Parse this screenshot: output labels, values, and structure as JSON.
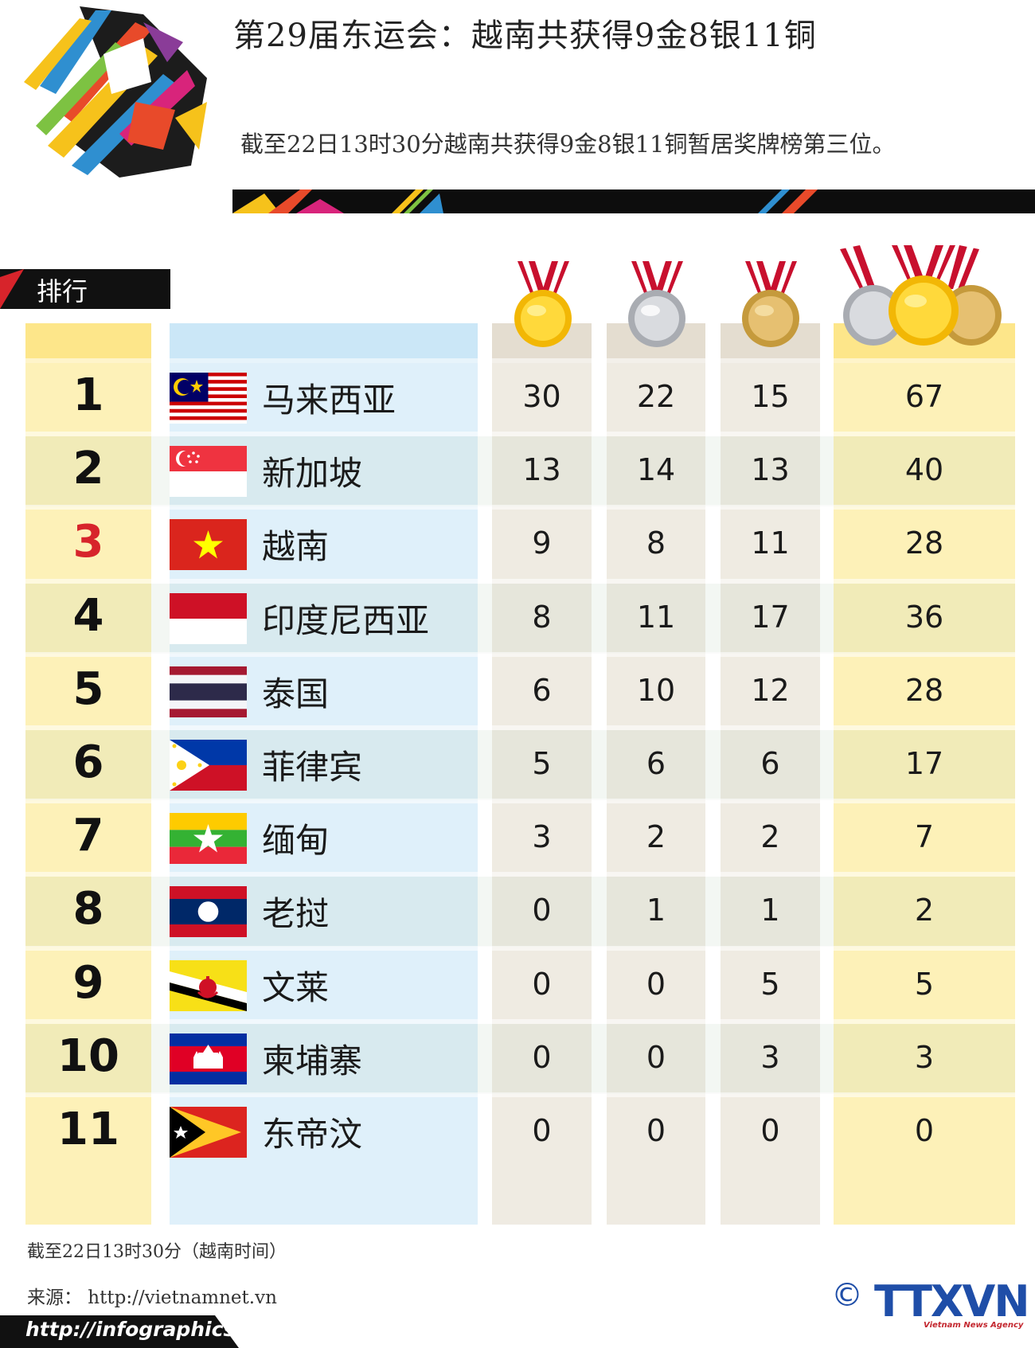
{
  "header": {
    "title": "第29届东运会：越南共获得9金8银11铜",
    "subtitle": "截至22日13时30分越南共获得9金8银11铜暂居奖牌榜第三位。"
  },
  "rank_label": "排行",
  "medal_icons": [
    "gold-medal-icon",
    "silver-medal-icon",
    "bronze-medal-icon",
    "all-medals-icon"
  ],
  "colors": {
    "rank_col": "#fdf1b8",
    "country_col": "#dff0fa",
    "medal_col": "#efebe2",
    "highlight": "#d7242b",
    "brand_blue": "#1f4ea8"
  },
  "rows": [
    {
      "rank": "1",
      "country": "马来西亚",
      "flag": "malaysia",
      "gold": "30",
      "silver": "22",
      "bronze": "15",
      "total": "67"
    },
    {
      "rank": "2",
      "country": "新加坡",
      "flag": "singapore",
      "gold": "13",
      "silver": "14",
      "bronze": "13",
      "total": "40"
    },
    {
      "rank": "3",
      "country": "越南",
      "flag": "vietnam",
      "gold": "9",
      "silver": "8",
      "bronze": "11",
      "total": "28",
      "highlight": true
    },
    {
      "rank": "4",
      "country": "印度尼西亚",
      "flag": "indonesia",
      "gold": "8",
      "silver": "11",
      "bronze": "17",
      "total": "36"
    },
    {
      "rank": "5",
      "country": "泰国",
      "flag": "thailand",
      "gold": "6",
      "silver": "10",
      "bronze": "12",
      "total": "28"
    },
    {
      "rank": "6",
      "country": "菲律宾",
      "flag": "philippines",
      "gold": "5",
      "silver": "6",
      "bronze": "6",
      "total": "17"
    },
    {
      "rank": "7",
      "country": "缅甸",
      "flag": "myanmar",
      "gold": "3",
      "silver": "2",
      "bronze": "2",
      "total": "7"
    },
    {
      "rank": "8",
      "country": "老挝",
      "flag": "laos",
      "gold": "0",
      "silver": "1",
      "bronze": "1",
      "total": "2"
    },
    {
      "rank": "9",
      "country": "文莱",
      "flag": "brunei",
      "gold": "0",
      "silver": "0",
      "bronze": "5",
      "total": "5"
    },
    {
      "rank": "10",
      "country": "柬埔寨",
      "flag": "cambodia",
      "gold": "0",
      "silver": "0",
      "bronze": "3",
      "total": "3"
    },
    {
      "rank": "11",
      "country": "东帝汶",
      "flag": "timor-leste",
      "gold": "0",
      "silver": "0",
      "bronze": "0",
      "total": "0"
    }
  ],
  "footer": {
    "note": "截至22日13时30分（越南时间）",
    "source": "来源：  http://vietnamnet.vn",
    "site": "http://infographics.vn",
    "copyright": "©",
    "agency": "TTXVN",
    "agency_sub": "Vietnam News Agency"
  }
}
